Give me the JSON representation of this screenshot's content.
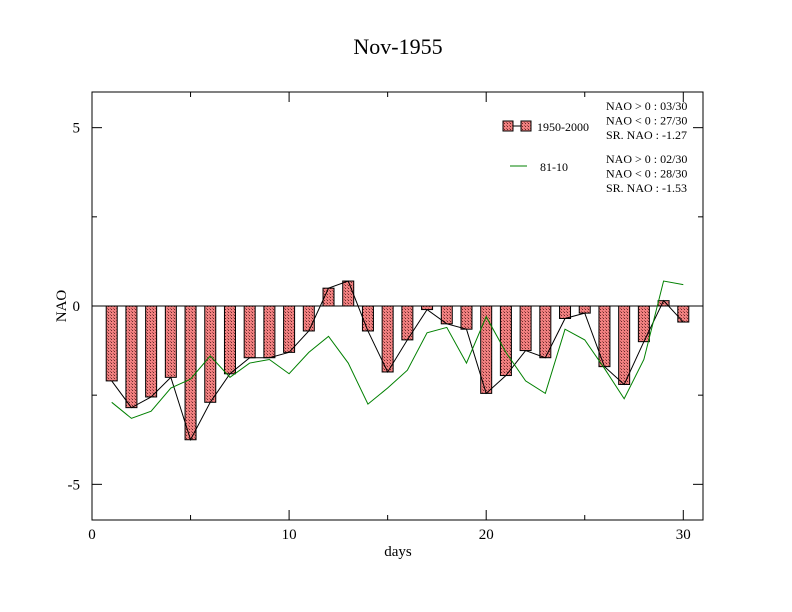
{
  "chart_data": {
    "type": "bar",
    "title": "Nov-1955",
    "xlabel": "days",
    "ylabel": "NAO",
    "xlim": [
      0,
      31
    ],
    "ylim": [
      -6,
      6
    ],
    "xticks": [
      0,
      10,
      20,
      30
    ],
    "yticks": [
      -5,
      0,
      5
    ],
    "x": [
      1,
      2,
      3,
      4,
      5,
      6,
      7,
      8,
      9,
      10,
      11,
      12,
      13,
      14,
      15,
      16,
      17,
      18,
      19,
      20,
      21,
      22,
      23,
      24,
      25,
      26,
      27,
      28,
      29,
      30
    ],
    "series": [
      {
        "name": "1950-2000",
        "kind": "bar",
        "fill": "#f08080",
        "line_color": "#000000",
        "values": [
          -2.1,
          -2.85,
          -2.55,
          -2.0,
          -3.75,
          -2.7,
          -1.9,
          -1.45,
          -1.45,
          -1.3,
          -0.7,
          0.5,
          0.7,
          -0.7,
          -1.85,
          -0.95,
          -0.1,
          -0.5,
          -0.65,
          -2.45,
          -1.95,
          -1.25,
          -1.45,
          -0.35,
          -0.2,
          -1.7,
          -2.2,
          -1.0,
          0.15,
          -0.45
        ]
      },
      {
        "name": "81-10",
        "kind": "line",
        "color": "#008000",
        "values": [
          -2.7,
          -3.15,
          -2.95,
          -2.3,
          -2.05,
          -1.4,
          -2.0,
          -1.6,
          -1.5,
          -1.9,
          -1.3,
          -0.85,
          -1.6,
          -2.75,
          -2.3,
          -1.8,
          -0.75,
          -0.6,
          -1.6,
          -0.3,
          -1.3,
          -2.1,
          -2.45,
          -0.65,
          -0.95,
          -1.75,
          -2.6,
          -1.5,
          0.7,
          0.6
        ]
      }
    ],
    "legend_placement": "top-right",
    "annotations": [
      [
        "NAO > 0 : 03/30",
        "NAO < 0 : 27/30",
        "SR. NAO : -1.27"
      ],
      [
        "NAO > 0 : 02/30",
        "NAO < 0 : 28/30",
        "SR. NAO : -1.53"
      ]
    ],
    "grid": false
  }
}
